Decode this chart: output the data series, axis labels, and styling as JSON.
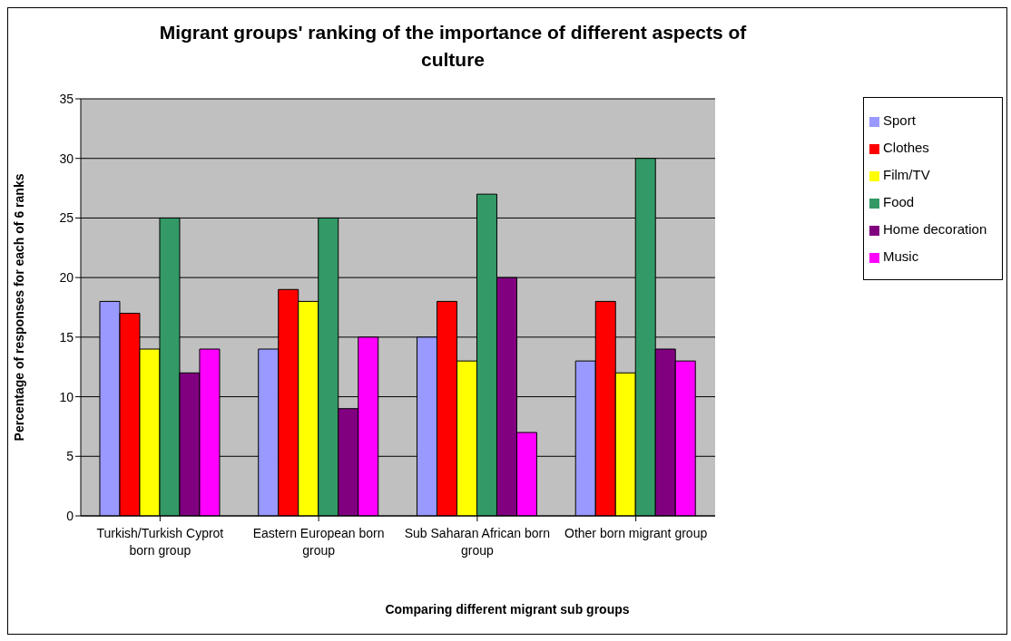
{
  "chart_data": {
    "type": "bar",
    "title": "Migrant groups' ranking of the importance of different aspects of culture",
    "xlabel": "Comparing different migrant sub groups",
    "ylabel": "Percentage of responses for each of 6 ranks",
    "categories": [
      "Turkish/Turkish Cyprot born group",
      "Eastern European born group",
      "Sub Saharan African born group",
      "Other born migrant group"
    ],
    "series": [
      {
        "name": "Sport",
        "color": "#9999ff",
        "values": [
          18,
          14,
          15,
          13
        ]
      },
      {
        "name": "Clothes",
        "color": "#ff0000",
        "values": [
          17,
          19,
          18,
          18
        ]
      },
      {
        "name": "Film/TV",
        "color": "#ffff00",
        "values": [
          14,
          18,
          13,
          12
        ]
      },
      {
        "name": "Food",
        "color": "#339966",
        "values": [
          25,
          25,
          27,
          30
        ]
      },
      {
        "name": "Home decoration",
        "color": "#800080",
        "values": [
          12,
          9,
          20,
          14
        ]
      },
      {
        "name": "Music",
        "color": "#ff00ff",
        "values": [
          14,
          15,
          7,
          13
        ]
      }
    ],
    "ylim": [
      0,
      35
    ],
    "yticks": [
      0,
      5,
      10,
      15,
      20,
      25,
      30,
      35
    ],
    "grid": "y",
    "legend": "top right"
  }
}
